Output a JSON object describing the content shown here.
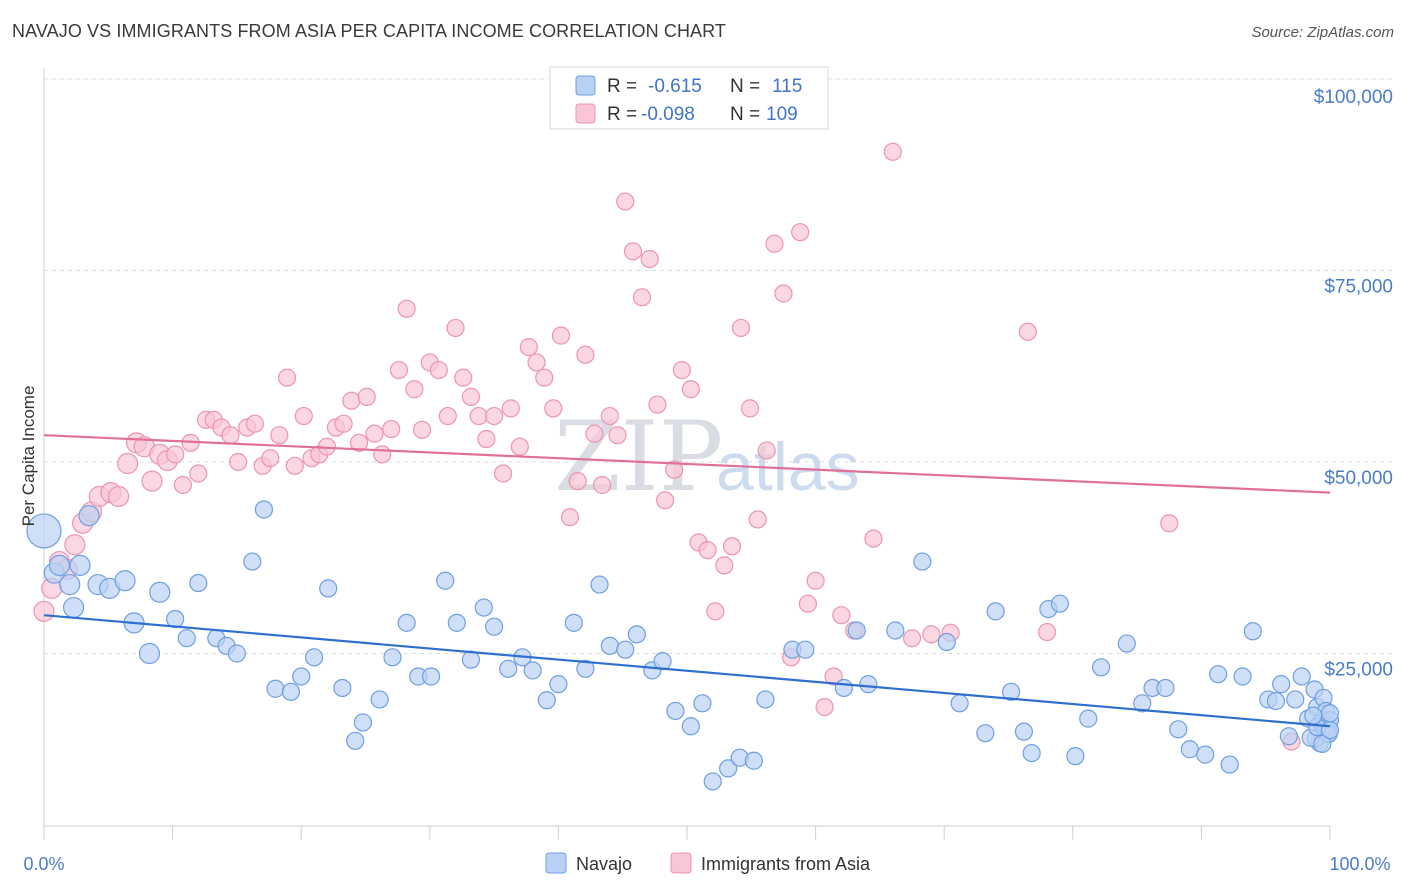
{
  "title": "NAVAJO VS IMMIGRANTS FROM ASIA PER CAPITA INCOME CORRELATION CHART",
  "source": "Source: ZipAtlas.com",
  "watermark": {
    "zip": "ZIP",
    "atlas": "atlas"
  },
  "colors": {
    "navajo_fill": "#b9d2f3",
    "navajo_stroke": "#6f9fe0",
    "navajo_line": "#2f6fcf",
    "asia_fill": "#f8c6d6",
    "asia_stroke": "#ec94b2",
    "asia_line": "#e07099",
    "tick_color": "#4a7cc7",
    "grid": "#dddddd"
  },
  "legend": {
    "rows": [
      {
        "r_label": "R =",
        "r_value": "-0.615",
        "n_label": "N =",
        "n_value": "115"
      },
      {
        "r_label": "R =",
        "r_value": "-0.098",
        "n_label": "N =",
        "n_value": "109"
      }
    ]
  },
  "bottom_legend": [
    "Navajo",
    "Immigrants from Asia"
  ],
  "chart_data": {
    "type": "scatter",
    "title": "NAVAJO VS IMMIGRANTS FROM ASIA PER CAPITA INCOME CORRELATION CHART",
    "xlabel": "",
    "ylabel": "Per Capita Income",
    "xlim": [
      0,
      100
    ],
    "ylim": [
      0,
      100000
    ],
    "x_tick_labels": [
      "0.0%",
      "100.0%"
    ],
    "y_ticks": [
      25000,
      50000,
      75000,
      100000
    ],
    "y_tick_labels": [
      "$25,000",
      "$50,000",
      "$75,000",
      "$100,000"
    ],
    "grid": true,
    "legend_position": "top-center",
    "series": [
      {
        "name": "Navajo",
        "r": -0.615,
        "n": 115,
        "trend": {
          "x": [
            0,
            100
          ],
          "y": [
            30000,
            15500
          ]
        },
        "points": [
          [
            0.0,
            41000
          ],
          [
            0.8,
            35500
          ],
          [
            1.2,
            36500
          ],
          [
            2.0,
            34000
          ],
          [
            2.3,
            31000
          ],
          [
            2.8,
            36500
          ],
          [
            3.5,
            43000
          ],
          [
            4.2,
            34000
          ],
          [
            5.1,
            33500
          ],
          [
            6.3,
            34500
          ],
          [
            7.0,
            29000
          ],
          [
            8.2,
            25000
          ],
          [
            9.0,
            33000
          ],
          [
            10.2,
            29500
          ],
          [
            11.1,
            27000
          ],
          [
            12.0,
            34200
          ],
          [
            13.4,
            27000
          ],
          [
            14.2,
            26000
          ],
          [
            15.0,
            25000
          ],
          [
            16.2,
            37000
          ],
          [
            17.1,
            43800
          ],
          [
            18.0,
            20400
          ],
          [
            19.2,
            20000
          ],
          [
            20.0,
            22000
          ],
          [
            21.0,
            24500
          ],
          [
            22.1,
            33500
          ],
          [
            23.2,
            20500
          ],
          [
            24.2,
            13600
          ],
          [
            24.8,
            16000
          ],
          [
            26.1,
            19000
          ],
          [
            27.1,
            24500
          ],
          [
            28.2,
            29000
          ],
          [
            29.1,
            22000
          ],
          [
            30.1,
            22000
          ],
          [
            31.2,
            34500
          ],
          [
            32.1,
            29000
          ],
          [
            33.2,
            24200
          ],
          [
            34.2,
            31000
          ],
          [
            35.0,
            28500
          ],
          [
            36.1,
            23000
          ],
          [
            37.2,
            24500
          ],
          [
            38.0,
            22800
          ],
          [
            39.1,
            18900
          ],
          [
            40.0,
            21000
          ],
          [
            41.2,
            29000
          ],
          [
            42.1,
            23000
          ],
          [
            43.2,
            34000
          ],
          [
            44.0,
            26000
          ],
          [
            45.2,
            25500
          ],
          [
            46.1,
            27500
          ],
          [
            47.3,
            22800
          ],
          [
            48.1,
            24000
          ],
          [
            49.1,
            17500
          ],
          [
            50.3,
            15500
          ],
          [
            51.2,
            18500
          ],
          [
            52.0,
            8300
          ],
          [
            53.2,
            10000
          ],
          [
            54.1,
            11400
          ],
          [
            55.2,
            11000
          ],
          [
            56.1,
            19000
          ],
          [
            58.2,
            25500
          ],
          [
            59.2,
            25500
          ],
          [
            62.2,
            20500
          ],
          [
            63.2,
            28000
          ],
          [
            64.1,
            21000
          ],
          [
            66.2,
            28000
          ],
          [
            68.3,
            37000
          ],
          [
            70.2,
            26500
          ],
          [
            71.2,
            18500
          ],
          [
            73.2,
            14600
          ],
          [
            74.0,
            30500
          ],
          [
            75.2,
            20000
          ],
          [
            76.2,
            14800
          ],
          [
            76.8,
            12000
          ],
          [
            78.1,
            30800
          ],
          [
            79.0,
            31500
          ],
          [
            80.2,
            11600
          ],
          [
            81.2,
            16500
          ],
          [
            82.2,
            23200
          ],
          [
            84.2,
            26300
          ],
          [
            85.4,
            18500
          ],
          [
            86.2,
            20500
          ],
          [
            87.2,
            20500
          ],
          [
            88.2,
            15100
          ],
          [
            89.1,
            12500
          ],
          [
            90.3,
            11800
          ],
          [
            91.3,
            22300
          ],
          [
            92.2,
            10500
          ],
          [
            93.2,
            22000
          ],
          [
            94.0,
            27900
          ],
          [
            95.2,
            19000
          ],
          [
            95.8,
            18800
          ],
          [
            96.2,
            21000
          ],
          [
            96.8,
            14200
          ],
          [
            97.3,
            19000
          ],
          [
            97.8,
            22000
          ],
          [
            98.3,
            16500
          ],
          [
            98.8,
            20300
          ],
          [
            99.0,
            18000
          ],
          [
            99.3,
            16000
          ],
          [
            99.5,
            19200
          ],
          [
            99.7,
            17500
          ],
          [
            99.8,
            14600
          ],
          [
            99.9,
            15600
          ],
          [
            100.0,
            16300
          ],
          [
            100.0,
            17200
          ],
          [
            99.6,
            15100
          ],
          [
            99.2,
            13300
          ],
          [
            98.9,
            13900
          ],
          [
            99.9,
            14500
          ],
          [
            98.5,
            14000
          ],
          [
            99.4,
            13200
          ],
          [
            99.0,
            15400
          ],
          [
            98.7,
            16900
          ],
          [
            100.0,
            15000
          ]
        ]
      },
      {
        "name": "Immigrants from Asia",
        "r": -0.098,
        "n": 109,
        "trend": {
          "x": [
            0,
            100
          ],
          "y": [
            53500,
            46000
          ]
        },
        "points": [
          [
            0.0,
            30500
          ],
          [
            0.6,
            33500
          ],
          [
            1.2,
            37000
          ],
          [
            1.8,
            36000
          ],
          [
            2.4,
            39200
          ],
          [
            3.0,
            42000
          ],
          [
            3.7,
            43500
          ],
          [
            4.3,
            45500
          ],
          [
            5.2,
            46000
          ],
          [
            5.8,
            45500
          ],
          [
            6.5,
            49800
          ],
          [
            7.2,
            52500
          ],
          [
            7.8,
            52000
          ],
          [
            8.4,
            47500
          ],
          [
            9.0,
            51000
          ],
          [
            9.6,
            50200
          ],
          [
            10.2,
            51000
          ],
          [
            10.8,
            47000
          ],
          [
            11.4,
            52500
          ],
          [
            12.0,
            48500
          ],
          [
            12.6,
            55500
          ],
          [
            13.2,
            55500
          ],
          [
            13.8,
            54500
          ],
          [
            14.5,
            53500
          ],
          [
            15.1,
            50000
          ],
          [
            15.8,
            54500
          ],
          [
            16.4,
            55000
          ],
          [
            17.0,
            49500
          ],
          [
            17.6,
            50500
          ],
          [
            18.3,
            53500
          ],
          [
            18.9,
            61000
          ],
          [
            19.5,
            49500
          ],
          [
            20.2,
            56000
          ],
          [
            20.8,
            50500
          ],
          [
            21.4,
            51000
          ],
          [
            22.0,
            52000
          ],
          [
            22.7,
            54500
          ],
          [
            23.3,
            55000
          ],
          [
            23.9,
            58000
          ],
          [
            24.5,
            52500
          ],
          [
            25.1,
            58500
          ],
          [
            25.7,
            53700
          ],
          [
            26.3,
            51000
          ],
          [
            27.0,
            54300
          ],
          [
            27.6,
            62000
          ],
          [
            28.2,
            70000
          ],
          [
            28.8,
            59500
          ],
          [
            29.4,
            54200
          ],
          [
            30.0,
            63000
          ],
          [
            30.7,
            62000
          ],
          [
            31.4,
            56000
          ],
          [
            32.0,
            67500
          ],
          [
            32.6,
            61000
          ],
          [
            33.2,
            58500
          ],
          [
            33.8,
            56000
          ],
          [
            34.4,
            53000
          ],
          [
            35.0,
            56000
          ],
          [
            35.7,
            48500
          ],
          [
            36.3,
            57000
          ],
          [
            37.0,
            52000
          ],
          [
            37.7,
            65000
          ],
          [
            38.3,
            63000
          ],
          [
            38.9,
            61000
          ],
          [
            39.6,
            57000
          ],
          [
            40.2,
            66500
          ],
          [
            40.9,
            42800
          ],
          [
            41.5,
            47500
          ],
          [
            42.1,
            64000
          ],
          [
            42.8,
            53700
          ],
          [
            43.4,
            47000
          ],
          [
            44.0,
            56000
          ],
          [
            44.6,
            53500
          ],
          [
            45.2,
            84000
          ],
          [
            45.8,
            77500
          ],
          [
            46.5,
            71500
          ],
          [
            47.1,
            76500
          ],
          [
            47.7,
            57500
          ],
          [
            48.3,
            45000
          ],
          [
            49.0,
            49000
          ],
          [
            49.6,
            62000
          ],
          [
            50.3,
            59500
          ],
          [
            50.9,
            39500
          ],
          [
            51.6,
            38500
          ],
          [
            52.2,
            30500
          ],
          [
            52.9,
            36500
          ],
          [
            53.5,
            39000
          ],
          [
            54.2,
            67500
          ],
          [
            54.9,
            57000
          ],
          [
            55.5,
            42500
          ],
          [
            56.2,
            51500
          ],
          [
            56.8,
            78500
          ],
          [
            57.5,
            72000
          ],
          [
            58.1,
            24500
          ],
          [
            58.8,
            80000
          ],
          [
            59.4,
            31500
          ],
          [
            60.0,
            34500
          ],
          [
            60.7,
            18000
          ],
          [
            61.4,
            22000
          ],
          [
            62.0,
            30000
          ],
          [
            63.0,
            28000
          ],
          [
            64.5,
            40000
          ],
          [
            66.0,
            90500
          ],
          [
            67.5,
            27000
          ],
          [
            69.0,
            27500
          ],
          [
            70.5,
            27700
          ],
          [
            76.5,
            67000
          ],
          [
            78.0,
            27800
          ],
          [
            87.5,
            42000
          ],
          [
            97.0,
            13500
          ]
        ]
      }
    ]
  }
}
